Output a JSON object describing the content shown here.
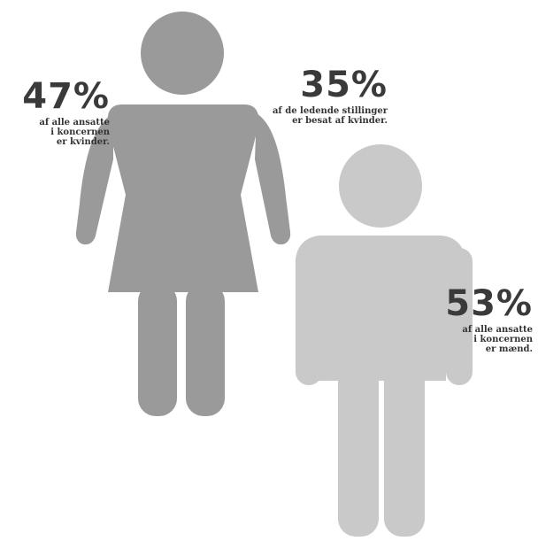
{
  "stats": {
    "women": {
      "percent": "47%",
      "lines": [
        "af alle ansatte",
        "i koncernen",
        "er kvinder."
      ]
    },
    "leaders": {
      "percent": "35%",
      "lines": [
        "af de ledende stillinger",
        "er besat af kvinder."
      ]
    },
    "men": {
      "percent": "53%",
      "lines": [
        "af alle ansatte",
        "i koncernen",
        "er mænd."
      ]
    }
  },
  "colors": {
    "woman_figure": "#9a9a9a",
    "man_figure": "#c9c9c9",
    "text": "#333333"
  },
  "icons": [
    "woman-icon",
    "man-icon"
  ]
}
